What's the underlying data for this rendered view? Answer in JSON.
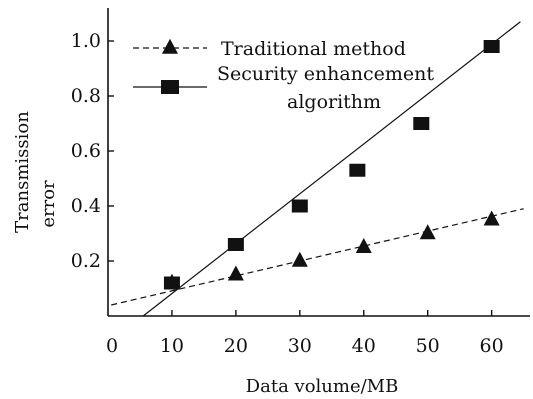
{
  "chart_data": {
    "type": "line",
    "xlabel": "Data volume/MB",
    "ylabel": "Transmission error",
    "xlim": [
      0,
      66
    ],
    "ylim": [
      0,
      1.12
    ],
    "x_ticks": [
      "0",
      "10",
      "20",
      "30",
      "40",
      "50",
      "60"
    ],
    "y_ticks": [
      "0.2",
      "0.4",
      "0.6",
      "0.8",
      "1.0"
    ],
    "legend_position": "top-left",
    "grid": false,
    "series": [
      {
        "name": "Traditional method",
        "marker": "triangle",
        "line_style": "dashed",
        "points": [
          [
            10,
            0.12
          ],
          [
            20,
            0.15
          ],
          [
            30,
            0.2
          ],
          [
            40,
            0.25
          ],
          [
            50,
            0.3
          ],
          [
            60,
            0.35
          ]
        ],
        "fit_line": [
          [
            0.5,
            0.04
          ],
          [
            65,
            0.39
          ]
        ]
      },
      {
        "name": "Security enhancement algorithm",
        "legend_lines": [
          "Security enhancement",
          "algorithm"
        ],
        "marker": "square",
        "line_style": "solid",
        "points": [
          [
            10,
            0.12
          ],
          [
            20,
            0.26
          ],
          [
            30,
            0.4
          ],
          [
            39,
            0.53
          ],
          [
            49,
            0.7
          ],
          [
            60,
            0.98
          ]
        ],
        "fit_line": [
          [
            5.5,
            0.0
          ],
          [
            64.5,
            1.07
          ]
        ]
      }
    ]
  }
}
